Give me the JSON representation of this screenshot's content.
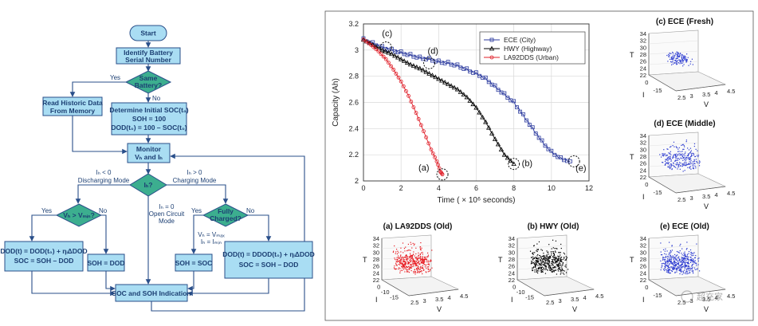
{
  "flowchart": {
    "start": "Start",
    "identify": [
      "Identify Battery",
      "Serial Number"
    ],
    "same_battery": [
      "Same",
      "Battery?"
    ],
    "yes": "Yes",
    "no": "No",
    "read_historic": [
      "Read Historic Data",
      "From Memory"
    ],
    "determine": [
      "Determine Initial SOC(t₀)",
      "SOH = 100",
      "DOD(t₀) = 100 – SOC(t₀)"
    ],
    "monitor": [
      "Monitor",
      "Vₕ and Iₕ"
    ],
    "ib_decision": "Iₕ?",
    "discharging": [
      "Iₕ < 0",
      "Discharging Mode"
    ],
    "charging": [
      "Iₕ > 0",
      "Charging Mode"
    ],
    "open_circuit": [
      "Iₕ = 0",
      "Open Circuit",
      "Mode"
    ],
    "vb_vmin": "Vₕ > Vₘᵢₙ?",
    "fully_charged": [
      "Fully",
      "Charged?"
    ],
    "vmax_imin": [
      "Vₕ = Vₘₐₓ",
      "Iₕ = Iₘᵢₙ"
    ],
    "dod_discharge": [
      "DOD(t) = DOD(t₀) + ηᵢΔDOD",
      "SOC = SOH – DOD"
    ],
    "soh_dod": "SOH = DOD",
    "soh_soc": "SOH = SOC",
    "dod_charge": [
      "DOD(t) = DDOD(t₀) + ηᵢΔDOD",
      "SOC = SOH – DOD"
    ],
    "indication": "SOC and SOH Indication"
  },
  "chart_data": [
    {
      "type": "line",
      "xlabel": "Time ( × 10⁶ seconds)",
      "ylabel": "Capacity (Ah)",
      "xlim": [
        0,
        12
      ],
      "ylim": [
        2,
        3.2
      ],
      "xticks": [
        0,
        2,
        4,
        6,
        8,
        10,
        12
      ],
      "yticks": [
        2,
        2.2,
        2.4,
        2.6,
        2.8,
        3,
        3.2
      ],
      "grid": true,
      "legend_position": "top-right",
      "series": [
        {
          "name": "ECE (City)",
          "color": "#2b3a9e",
          "marker": "square",
          "x": [
            0,
            0.5,
            1,
            1.5,
            2,
            2.5,
            3,
            3.5,
            4,
            4.5,
            5,
            5.5,
            6,
            6.5,
            7,
            7.5,
            8,
            8.5,
            9,
            9.5,
            10,
            10.5,
            11
          ],
          "y": [
            3.08,
            3.05,
            3.02,
            3.0,
            2.98,
            2.96,
            2.94,
            2.93,
            2.91,
            2.9,
            2.88,
            2.85,
            2.82,
            2.78,
            2.72,
            2.66,
            2.6,
            2.5,
            2.4,
            2.3,
            2.22,
            2.17,
            2.15
          ]
        },
        {
          "name": "HWY (Highway)",
          "color": "#000000",
          "marker": "triangle",
          "x": [
            0,
            0.5,
            1,
            1.5,
            2,
            2.5,
            3,
            3.5,
            4,
            4.5,
            5,
            5.5,
            6,
            6.5,
            7,
            7.5,
            8
          ],
          "y": [
            3.08,
            3.04,
            3.0,
            2.97,
            2.93,
            2.89,
            2.86,
            2.82,
            2.78,
            2.74,
            2.7,
            2.64,
            2.56,
            2.45,
            2.32,
            2.2,
            2.13
          ]
        },
        {
          "name": "LA92DDS (Urban)",
          "color": "#e0202a",
          "marker": "diamond",
          "x": [
            0,
            0.4,
            0.8,
            1.2,
            1.6,
            2,
            2.4,
            2.8,
            3.2,
            3.6,
            3.9,
            4.1,
            4.2
          ],
          "y": [
            3.08,
            3.04,
            2.99,
            2.93,
            2.85,
            2.76,
            2.65,
            2.52,
            2.38,
            2.24,
            2.15,
            2.07,
            2.05
          ]
        }
      ],
      "annotations": [
        "(a)",
        "(b)",
        "(c)",
        "(d)",
        "(e)"
      ]
    }
  ],
  "scatter3d": [
    {
      "title": "(c) ECE (Fresh)",
      "color": "#2b3ad0",
      "density": "low"
    },
    {
      "title": "(d) ECE (Middle)",
      "color": "#2b3ad0",
      "density": "medium"
    },
    {
      "title": "(e) ECE (Old)",
      "color": "#2b3ad0",
      "density": "high"
    },
    {
      "title": "(a) LA92DDS (Old)",
      "color": "#e8191f",
      "density": "high"
    },
    {
      "title": "(b) HWY (Old)",
      "color": "#000000",
      "density": "high"
    }
  ],
  "scatter_axes": {
    "t_label": "T",
    "i_label": "I",
    "v_label": "V",
    "t_ticks": [
      "34",
      "32",
      "30",
      "28",
      "26",
      "24",
      "22"
    ],
    "i_ticks": [
      "0",
      "-15"
    ],
    "i_ticks_full": [
      "0",
      "-10",
      "-15"
    ],
    "v_ticks": [
      "2.5",
      "3",
      "3.5",
      "4",
      "4.5"
    ]
  },
  "watermark": "超充家"
}
